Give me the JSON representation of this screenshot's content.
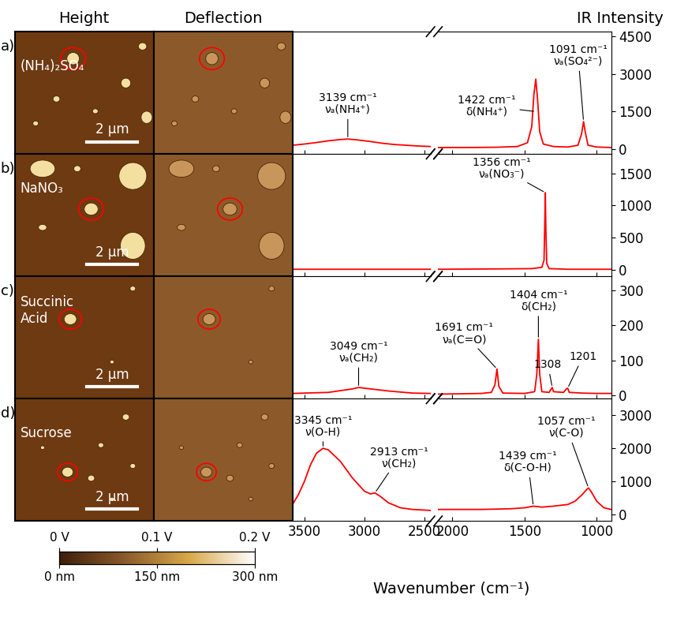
{
  "figure": {
    "columns": [
      "Height",
      "Deflection"
    ],
    "y_label": "IR Intensity",
    "x_label": "Wavenumber (cm⁻¹)"
  },
  "afm_images": {
    "rows": [
      {
        "label": "a)",
        "sample": "(NH₄)₂SO₄",
        "scale_bar": "2 μm"
      },
      {
        "label": "b)",
        "sample": "NaNO₃",
        "scale_bar": "2 μm"
      },
      {
        "label": "c)",
        "sample": "Succinic\nAcid",
        "scale_bar": "2 μm"
      },
      {
        "label": "d)",
        "sample": "Sucrose",
        "scale_bar": "2 μm"
      }
    ],
    "color_bar": {
      "height": {
        "range": [
          0,
          300
        ],
        "ticks": [
          {
            "value": 0,
            "label": "0 nm"
          },
          {
            "value": 150,
            "label": "150 nm"
          },
          {
            "value": 300,
            "label": "300 nm"
          }
        ]
      },
      "deflection": {
        "range": [
          0,
          0.2
        ],
        "ticks": [
          {
            "value": 0,
            "label": "0 V"
          },
          {
            "value": 0.1,
            "label": "0.1 V"
          },
          {
            "value": 0.2,
            "label": "0.2 V"
          }
        ]
      }
    }
  },
  "chart_data": [
    {
      "type": "line",
      "color": "#ff0000",
      "tick_labels": "y",
      "xlim": [
        [
          3600,
          2450
        ],
        [
          2100,
          900
        ]
      ],
      "xticks": [
        3500,
        3000,
        2500,
        2000,
        1500,
        1000
      ],
      "ylim": [
        -200,
        4700
      ],
      "yticks": [
        0,
        1500,
        3000,
        4500
      ],
      "x": [
        3600,
        3500,
        3400,
        3300,
        3200,
        3139,
        3050,
        2950,
        2850,
        2750,
        2650,
        2550,
        2450,
        2100,
        1900,
        1700,
        1550,
        1480,
        1450,
        1435,
        1422,
        1410,
        1395,
        1370,
        1300,
        1200,
        1130,
        1105,
        1091,
        1080,
        1060,
        1000,
        950,
        900
      ],
      "values": [
        150,
        200,
        260,
        330,
        380,
        400,
        360,
        300,
        230,
        180,
        150,
        120,
        100,
        60,
        60,
        70,
        100,
        250,
        900,
        2200,
        2800,
        2000,
        700,
        200,
        100,
        80,
        150,
        600,
        1100,
        700,
        150,
        80,
        70,
        60
      ],
      "annotations": [
        {
          "text": "3139 cm⁻¹\nνₐ(NH₄⁺)",
          "x": 3139,
          "y": 400
        },
        {
          "text": "1422 cm⁻¹\nδ(NH₄⁺)",
          "x": 1422,
          "y": 1500
        },
        {
          "text": "1091 cm⁻¹\nνₐ(SO₄²⁻)",
          "x": 1091,
          "y": 1100
        }
      ]
    },
    {
      "type": "line",
      "color": "#ff0000",
      "tick_labels": "y",
      "xlim": [
        [
          3600,
          2450
        ],
        [
          2100,
          900
        ]
      ],
      "xticks": [
        3500,
        3000,
        2500,
        2000,
        1500,
        1000
      ],
      "ylim": [
        -100,
        1800
      ],
      "yticks": [
        0,
        500,
        1000,
        1500
      ],
      "x": [
        3600,
        3000,
        2450,
        2100,
        1700,
        1450,
        1380,
        1365,
        1360,
        1356,
        1352,
        1346,
        1330,
        1200,
        900
      ],
      "values": [
        10,
        10,
        10,
        10,
        15,
        20,
        40,
        150,
        700,
        1200,
        600,
        100,
        20,
        10,
        10
      ],
      "annotations": [
        {
          "text": "1356 cm⁻¹\nνₐ(NO₃⁻)",
          "x": 1356,
          "y": 1200
        }
      ]
    },
    {
      "type": "line",
      "color": "#ff0000",
      "tick_labels": "y",
      "xlim": [
        [
          3600,
          2450
        ],
        [
          2100,
          900
        ]
      ],
      "xticks": [
        3500,
        3000,
        2500,
        2000,
        1500,
        1000
      ],
      "ylim": [
        -10,
        340
      ],
      "yticks": [
        0,
        100,
        200,
        300
      ],
      "x": [
        3600,
        3300,
        3100,
        3049,
        2950,
        2800,
        2600,
        2450,
        2100,
        1800,
        1730,
        1705,
        1691,
        1678,
        1650,
        1500,
        1430,
        1415,
        1404,
        1395,
        1380,
        1330,
        1315,
        1308,
        1300,
        1230,
        1210,
        1201,
        1190,
        1100,
        1000,
        900
      ],
      "values": [
        5,
        8,
        18,
        22,
        18,
        12,
        6,
        5,
        3,
        5,
        8,
        30,
        75,
        25,
        6,
        5,
        10,
        60,
        160,
        60,
        10,
        8,
        18,
        22,
        10,
        8,
        18,
        20,
        8,
        6,
        5,
        5
      ],
      "annotations": [
        {
          "text": "3049 cm⁻¹\nνₐ(CH₂)",
          "x": 3049,
          "y": 22
        },
        {
          "text": "1691 cm⁻¹\nνₐ(C=O)",
          "x": 1691,
          "y": 75
        },
        {
          "text": "1404 cm⁻¹\nδ(CH₂)",
          "x": 1404,
          "y": 160
        },
        {
          "text": "1308",
          "x": 1308,
          "y": 22
        },
        {
          "text": "1201",
          "x": 1201,
          "y": 20
        }
      ]
    },
    {
      "type": "line",
      "color": "#ff0000",
      "xlim": [
        [
          3600,
          2450
        ],
        [
          2100,
          900
        ]
      ],
      "xticks": [
        3500,
        3000,
        2500,
        2000,
        1500,
        1000
      ],
      "ylim": [
        -200,
        3500
      ],
      "yticks": [
        0,
        1000,
        2000,
        3000
      ],
      "x": [
        3600,
        3550,
        3500,
        3450,
        3400,
        3345,
        3300,
        3200,
        3100,
        3000,
        2950,
        2913,
        2870,
        2800,
        2700,
        2600,
        2450,
        2100,
        1800,
        1600,
        1500,
        1439,
        1380,
        1300,
        1200,
        1150,
        1100,
        1070,
        1057,
        1040,
        1000,
        950,
        900
      ],
      "values": [
        300,
        600,
        1000,
        1500,
        1850,
        2000,
        1950,
        1600,
        1100,
        700,
        620,
        650,
        550,
        350,
        200,
        150,
        120,
        150,
        150,
        170,
        200,
        250,
        220,
        250,
        300,
        400,
        600,
        750,
        800,
        700,
        400,
        200,
        150
      ],
      "annotations": [
        {
          "text": "3345 cm⁻¹\nν(O-H)",
          "x": 3345,
          "y": 2000
        },
        {
          "text": "2913 cm⁻¹\nν(CH₂)",
          "x": 2913,
          "y": 650
        },
        {
          "text": "1439 cm⁻¹\nδ(C-O-H)",
          "x": 1439,
          "y": 250
        },
        {
          "text": "1057 cm⁻¹\nν(C-O)",
          "x": 1057,
          "y": 800
        }
      ]
    }
  ]
}
